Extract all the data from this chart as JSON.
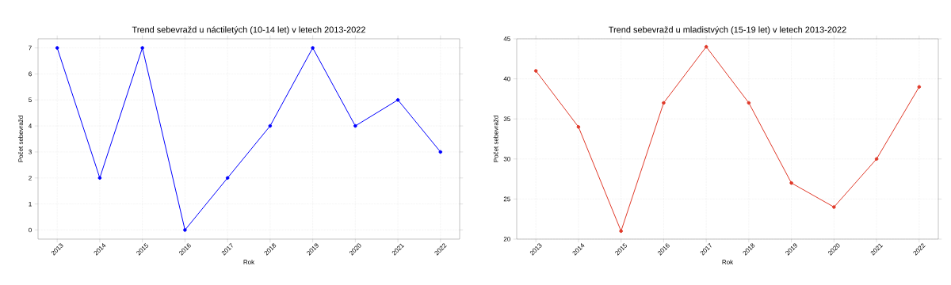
{
  "chart_data": [
    {
      "type": "line",
      "title": "Trend sebevražd u náctiletých (10-14 let) v letech 2013-2022",
      "xlabel": "Rok",
      "ylabel": "Počet sebevražd",
      "categories": [
        "2013",
        "2014",
        "2015",
        "2016",
        "2017",
        "2018",
        "2019",
        "2020",
        "2021",
        "2022"
      ],
      "series": [
        {
          "color": "#0000ff",
          "values": [
            7,
            2,
            7,
            0,
            2,
            4,
            7,
            4,
            5,
            3
          ]
        }
      ],
      "ylim": [
        -0.35,
        7.35
      ],
      "yticks": [
        0,
        1,
        2,
        3,
        4,
        5,
        6,
        7
      ],
      "grid": true,
      "marker": "circle",
      "line_style": "solid"
    },
    {
      "type": "line",
      "title": "Trend sebevražd u mladistvých (15-19 let) v letech 2013-2022",
      "xlabel": "Rok",
      "ylabel": "Počet sebevražd",
      "categories": [
        "2013",
        "2014",
        "2015",
        "2016",
        "2017",
        "2018",
        "2019",
        "2020",
        "2021",
        "2022"
      ],
      "series": [
        {
          "color": "#e03a2a",
          "values": [
            41,
            34,
            21,
            37,
            44,
            37,
            27,
            24,
            30,
            39
          ]
        }
      ],
      "ylim": [
        20,
        45
      ],
      "yticks": [
        20,
        25,
        30,
        35,
        40,
        45
      ],
      "grid": true,
      "marker": "circle",
      "line_style": "solid"
    }
  ]
}
